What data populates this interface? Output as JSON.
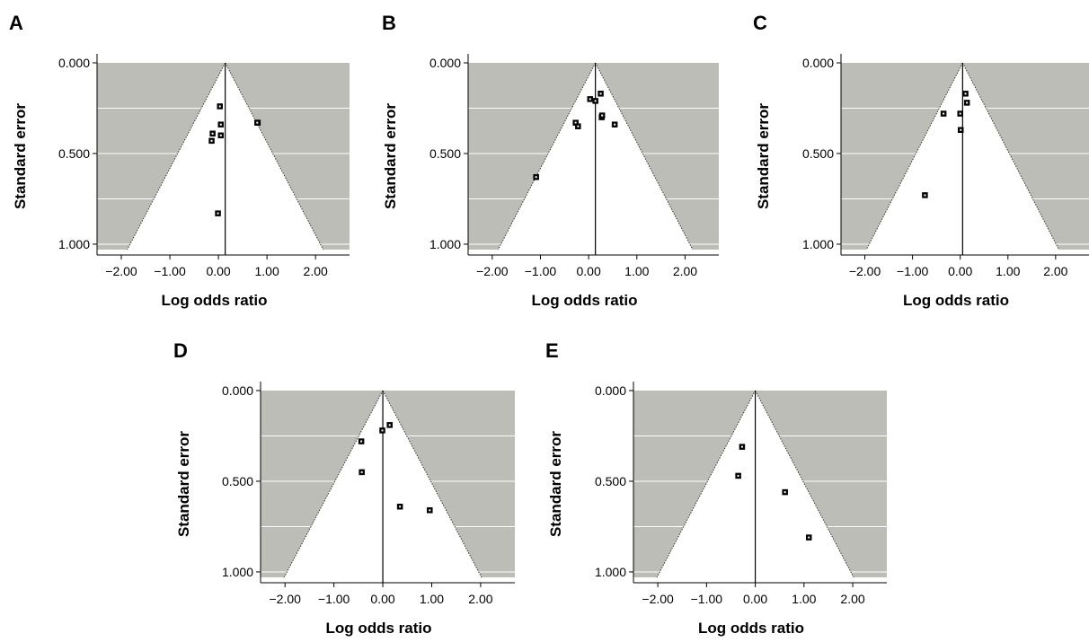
{
  "figure": {
    "panels_note": "Five funnel plots of standard error vs log odds ratio"
  },
  "chart_data": [
    {
      "panel": "A",
      "type": "scatter",
      "xlabel": "Log odds ratio",
      "ylabel": "Standard error",
      "xlim": [
        -2.5,
        2.7
      ],
      "ylim": [
        0,
        1.03
      ],
      "y_reversed": true,
      "xticks": [
        "−2.00",
        "−1.00",
        "0.00",
        "1.00",
        "2.00"
      ],
      "xtick_values": [
        -2,
        -1,
        0,
        1,
        2
      ],
      "yticks": [
        "0.000",
        "0.500",
        "1.000"
      ],
      "ytick_values": [
        0,
        0.5,
        1
      ],
      "gridlines_y": [
        0.25,
        0.5,
        0.75,
        1.0
      ],
      "funnel_center": 0.14,
      "points": [
        {
          "x": 0.03,
          "y": 0.24
        },
        {
          "x": 0.05,
          "y": 0.34
        },
        {
          "x": 0.05,
          "y": 0.4
        },
        {
          "x": -0.12,
          "y": 0.39
        },
        {
          "x": -0.14,
          "y": 0.43
        },
        {
          "x": 0.81,
          "y": 0.33
        },
        {
          "x": 0.8,
          "y": 0.33
        },
        {
          "x": -0.01,
          "y": 0.83
        }
      ]
    },
    {
      "panel": "B",
      "type": "scatter",
      "xlabel": "Log odds ratio",
      "ylabel": "Standard error",
      "xlim": [
        -2.5,
        2.7
      ],
      "ylim": [
        0,
        1.03
      ],
      "y_reversed": true,
      "xticks": [
        "−2.00",
        "−1.00",
        "0.00",
        "1.00",
        "2.00"
      ],
      "xtick_values": [
        -2,
        -1,
        0,
        1,
        2
      ],
      "yticks": [
        "0.000",
        "0.500",
        "1.000"
      ],
      "ytick_values": [
        0,
        0.5,
        1
      ],
      "gridlines_y": [
        0.25,
        0.5,
        0.75,
        1.0
      ],
      "funnel_center": 0.14,
      "points": [
        {
          "x": 0.03,
          "y": 0.2
        },
        {
          "x": 0.14,
          "y": 0.21
        },
        {
          "x": 0.25,
          "y": 0.17
        },
        {
          "x": 0.27,
          "y": 0.3
        },
        {
          "x": 0.28,
          "y": 0.29
        },
        {
          "x": 0.54,
          "y": 0.34
        },
        {
          "x": -0.27,
          "y": 0.33
        },
        {
          "x": -0.22,
          "y": 0.35
        },
        {
          "x": -1.09,
          "y": 0.63
        }
      ]
    },
    {
      "panel": "C",
      "type": "scatter",
      "xlabel": "Log odds ratio",
      "ylabel": "Standard error",
      "xlim": [
        -2.5,
        2.7
      ],
      "ylim": [
        0,
        1.03
      ],
      "y_reversed": true,
      "xticks": [
        "−2.00",
        "−1.00",
        "0.00",
        "1.00",
        "2.00"
      ],
      "xtick_values": [
        -2,
        -1,
        0,
        1,
        2
      ],
      "yticks": [
        "0.000",
        "0.500",
        "1.000"
      ],
      "ytick_values": [
        0,
        0.5,
        1
      ],
      "gridlines_y": [
        0.25,
        0.5,
        0.75,
        1.0
      ],
      "funnel_center": 0.05,
      "points": [
        {
          "x": 0.11,
          "y": 0.17
        },
        {
          "x": 0.14,
          "y": 0.22
        },
        {
          "x": 0.0,
          "y": 0.28
        },
        {
          "x": -0.35,
          "y": 0.28
        },
        {
          "x": 0.01,
          "y": 0.37
        },
        {
          "x": -0.74,
          "y": 0.73
        }
      ]
    },
    {
      "panel": "D",
      "type": "scatter",
      "xlabel": "Log odds ratio",
      "ylabel": "Standard error",
      "xlim": [
        -2.5,
        2.7
      ],
      "ylim": [
        0,
        1.03
      ],
      "y_reversed": true,
      "xticks": [
        "−2.00",
        "−1.00",
        "0.00",
        "1.00",
        "2.00"
      ],
      "xtick_values": [
        -2,
        -1,
        0,
        1,
        2
      ],
      "yticks": [
        "0.000",
        "0.500",
        "1.000"
      ],
      "ytick_values": [
        0,
        0.5,
        1
      ],
      "gridlines_y": [
        0.25,
        0.5,
        0.75,
        1.0
      ],
      "funnel_center": 0.0,
      "points": [
        {
          "x": 0.14,
          "y": 0.19
        },
        {
          "x": -0.01,
          "y": 0.22
        },
        {
          "x": -0.44,
          "y": 0.28
        },
        {
          "x": -0.43,
          "y": 0.45
        },
        {
          "x": 0.35,
          "y": 0.64
        },
        {
          "x": 0.96,
          "y": 0.66
        }
      ]
    },
    {
      "panel": "E",
      "type": "scatter",
      "xlabel": "Log odds ratio",
      "ylabel": "Standard error",
      "xlim": [
        -2.5,
        2.7
      ],
      "ylim": [
        0,
        1.03
      ],
      "y_reversed": true,
      "xticks": [
        "−2.00",
        "−1.00",
        "0.00",
        "1.00",
        "2.00"
      ],
      "xtick_values": [
        -2,
        -1,
        0,
        1,
        2
      ],
      "yticks": [
        "0.000",
        "0.500",
        "1.000"
      ],
      "ytick_values": [
        0,
        0.5,
        1
      ],
      "gridlines_y": [
        0.25,
        0.5,
        0.75,
        1.0
      ],
      "funnel_center": 0.0,
      "points": [
        {
          "x": -0.27,
          "y": 0.31
        },
        {
          "x": -0.35,
          "y": 0.47
        },
        {
          "x": 0.61,
          "y": 0.56
        },
        {
          "x": 1.1,
          "y": 0.81
        }
      ]
    }
  ],
  "colors": {
    "shade": "#bdbdb7",
    "grid": "#ffffff",
    "axis": "#000000",
    "marker": "#000000"
  }
}
